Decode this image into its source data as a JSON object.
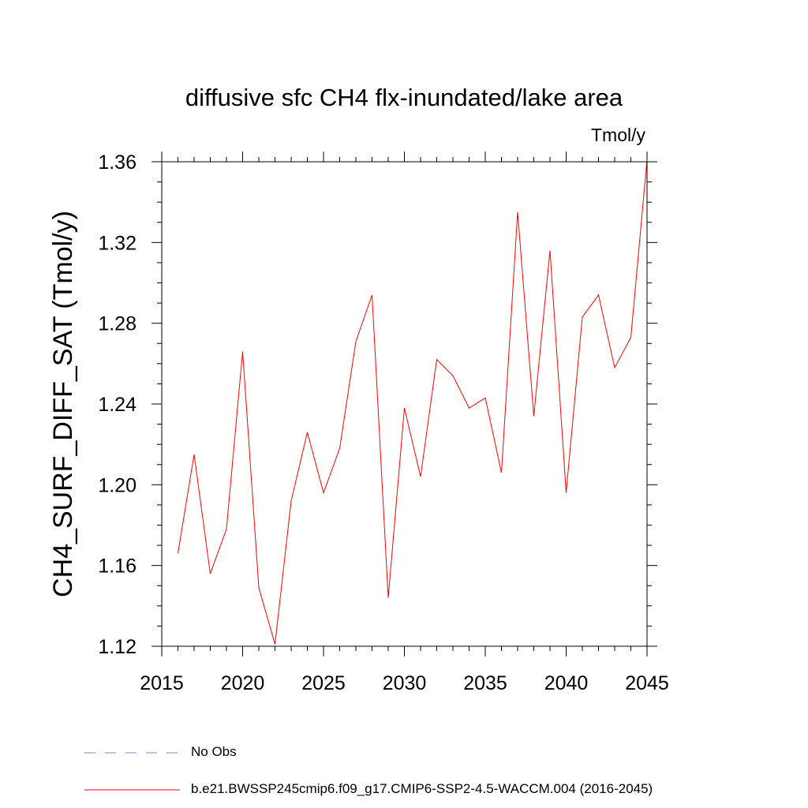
{
  "chart_data": {
    "type": "line",
    "title": "diffusive sfc CH4 flx-inundated/lake area",
    "units_label": "Tmol/y",
    "xlabel": "",
    "ylabel": "CH4_SURF_DIFF_SAT  (Tmol/y)",
    "xlim": [
      2015,
      2045
    ],
    "ylim": [
      1.12,
      1.36
    ],
    "x_ticks": [
      "2015",
      "2020",
      "2025",
      "2030",
      "2035",
      "2040",
      "2045"
    ],
    "y_ticks": [
      "1.12",
      "1.16",
      "1.20",
      "1.24",
      "1.28",
      "1.32",
      "1.36"
    ],
    "x": [
      2016,
      2017,
      2018,
      2019,
      2020,
      2021,
      2022,
      2023,
      2024,
      2025,
      2026,
      2027,
      2028,
      2029,
      2030,
      2031,
      2032,
      2033,
      2034,
      2035,
      2036,
      2037,
      2038,
      2039,
      2040,
      2041,
      2042,
      2043,
      2044,
      2045
    ],
    "series": [
      {
        "name": "b.e21.BWSSP245cmip6.f09_g17.CMIP6-SSP2-4.5-WACCM.004 (2016-2045)",
        "color": "#ff0000",
        "values": [
          1.166,
          1.215,
          1.156,
          1.178,
          1.266,
          1.149,
          1.121,
          1.192,
          1.226,
          1.196,
          1.218,
          1.271,
          1.294,
          1.144,
          1.238,
          1.204,
          1.262,
          1.254,
          1.238,
          1.243,
          1.206,
          1.335,
          1.234,
          1.316,
          1.196,
          1.283,
          1.294,
          1.258,
          1.273,
          1.361
        ]
      }
    ],
    "legend": [
      {
        "label": "No Obs",
        "color": "#8a7fd0",
        "style": "dashed"
      },
      {
        "label": "b.e21.BWSSP245cmip6.f09_g17.CMIP6-SSP2-4.5-WACCM.004 (2016-2045)",
        "color": "#ff0000",
        "style": "solid"
      }
    ]
  }
}
